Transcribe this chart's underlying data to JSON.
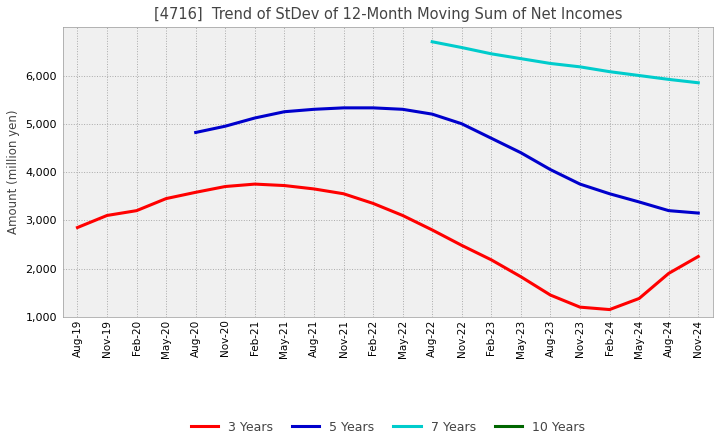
{
  "title": "[4716]  Trend of StDev of 12-Month Moving Sum of Net Incomes",
  "ylabel": "Amount (million yen)",
  "ylim": [
    1000,
    7000
  ],
  "yticks": [
    1000,
    2000,
    3000,
    4000,
    5000,
    6000
  ],
  "line_colors": {
    "3y": "#ff0000",
    "5y": "#0000cc",
    "7y": "#00cccc",
    "10y": "#006600"
  },
  "legend_labels": [
    "3 Years",
    "5 Years",
    "7 Years",
    "10 Years"
  ],
  "x_labels": [
    "Aug-19",
    "Nov-19",
    "Feb-20",
    "May-20",
    "Aug-20",
    "Nov-20",
    "Feb-21",
    "May-21",
    "Aug-21",
    "Nov-21",
    "Feb-22",
    "May-22",
    "Aug-22",
    "Nov-22",
    "Feb-23",
    "May-23",
    "Aug-23",
    "Nov-23",
    "Feb-24",
    "May-24",
    "Aug-24",
    "Nov-24"
  ],
  "data_3y": [
    2850,
    3100,
    3200,
    3450,
    3580,
    3700,
    3750,
    3720,
    3650,
    3550,
    3350,
    3100,
    2800,
    2480,
    2180,
    1830,
    1450,
    1200,
    1150,
    1380,
    1900,
    2250
  ],
  "data_5y": [
    null,
    null,
    null,
    null,
    4820,
    4950,
    5120,
    5250,
    5300,
    5330,
    5330,
    5300,
    5200,
    5000,
    4700,
    4400,
    4050,
    3750,
    3550,
    3380,
    3200,
    3150
  ],
  "data_7y": [
    null,
    null,
    null,
    null,
    null,
    null,
    null,
    null,
    null,
    null,
    null,
    null,
    6700,
    6580,
    6450,
    6350,
    6250,
    6180,
    6080,
    6000,
    5920,
    5850
  ],
  "data_10y": [
    null,
    null,
    null,
    null,
    null,
    null,
    null,
    null,
    null,
    null,
    null,
    null,
    null,
    null,
    null,
    null,
    null,
    null,
    null,
    null,
    null,
    null
  ],
  "background_color": "#ffffff",
  "plot_bg_color": "#f0f0f0",
  "grid_color": "#aaaaaa"
}
